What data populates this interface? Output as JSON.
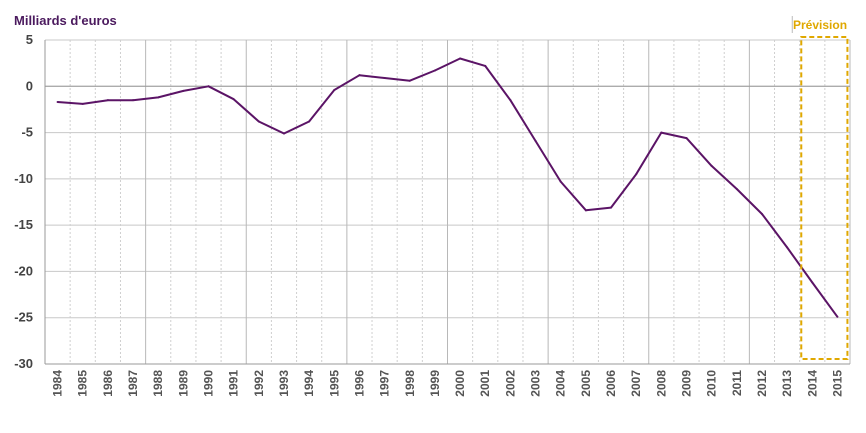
{
  "chart_data": {
    "type": "line",
    "ylabel": "Milliards d'euros",
    "ylim": [
      -30,
      5
    ],
    "yticks": [
      5,
      0,
      -5,
      -10,
      -15,
      -20,
      -25,
      -30
    ],
    "grid": true,
    "categories": [
      "1984",
      "1985",
      "1986",
      "1987",
      "1988",
      "1989",
      "1990",
      "1991",
      "1992",
      "1993",
      "1994",
      "1995",
      "1996",
      "1997",
      "1998",
      "1999",
      "2000",
      "2001",
      "2002",
      "2003",
      "2004",
      "2005",
      "2006",
      "2007",
      "2008",
      "2009",
      "2010",
      "2011",
      "2012",
      "2013",
      "2014",
      "2015"
    ],
    "series": [
      {
        "values": [
          -1.7,
          -1.9,
          -1.5,
          -1.5,
          -1.2,
          -0.5,
          0.0,
          -1.4,
          -3.8,
          -5.1,
          -3.8,
          -0.4,
          1.2,
          0.9,
          0.6,
          1.7,
          3.0,
          2.2,
          -1.5,
          -5.9,
          -10.3,
          -13.4,
          -13.1,
          -9.5,
          -5.0,
          -5.6,
          -8.6,
          -11.1,
          -13.8,
          -17.4,
          -21.2,
          -24.9
        ]
      }
    ],
    "annotations": [
      {
        "text": "Prévision",
        "range": [
          "2014",
          "2015"
        ]
      }
    ],
    "colors": {
      "line": "#5b1466",
      "forecast": "#e0a800",
      "grid": "#c8c8c8"
    }
  }
}
